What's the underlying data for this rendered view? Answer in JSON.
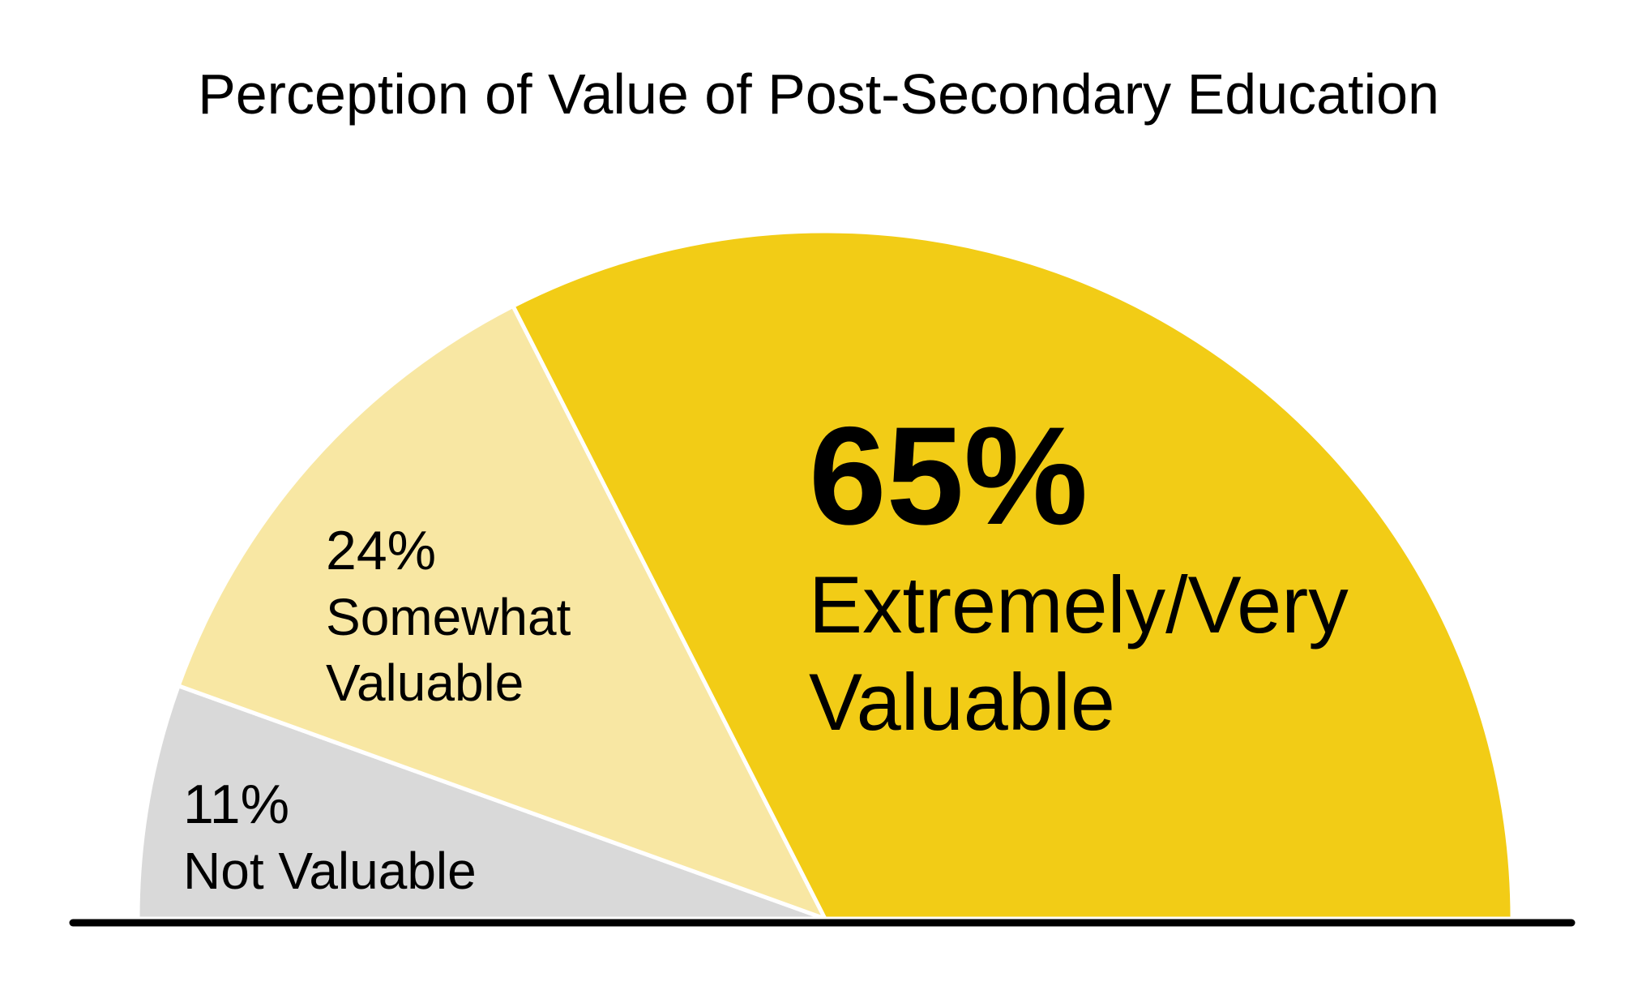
{
  "chart_data": {
    "type": "semicircle-pie",
    "title": "Perception of Value of Post-Secondary Education",
    "categories": [
      "Not Valuable",
      "Somewhat Valuable",
      "Extremely/Very Valuable"
    ],
    "values": [
      11,
      24,
      65
    ],
    "value_labels": [
      "11%",
      "24%",
      "65%"
    ],
    "colors": [
      "#d9d9d9",
      "#f8e7a3",
      "#f2cc16"
    ]
  }
}
